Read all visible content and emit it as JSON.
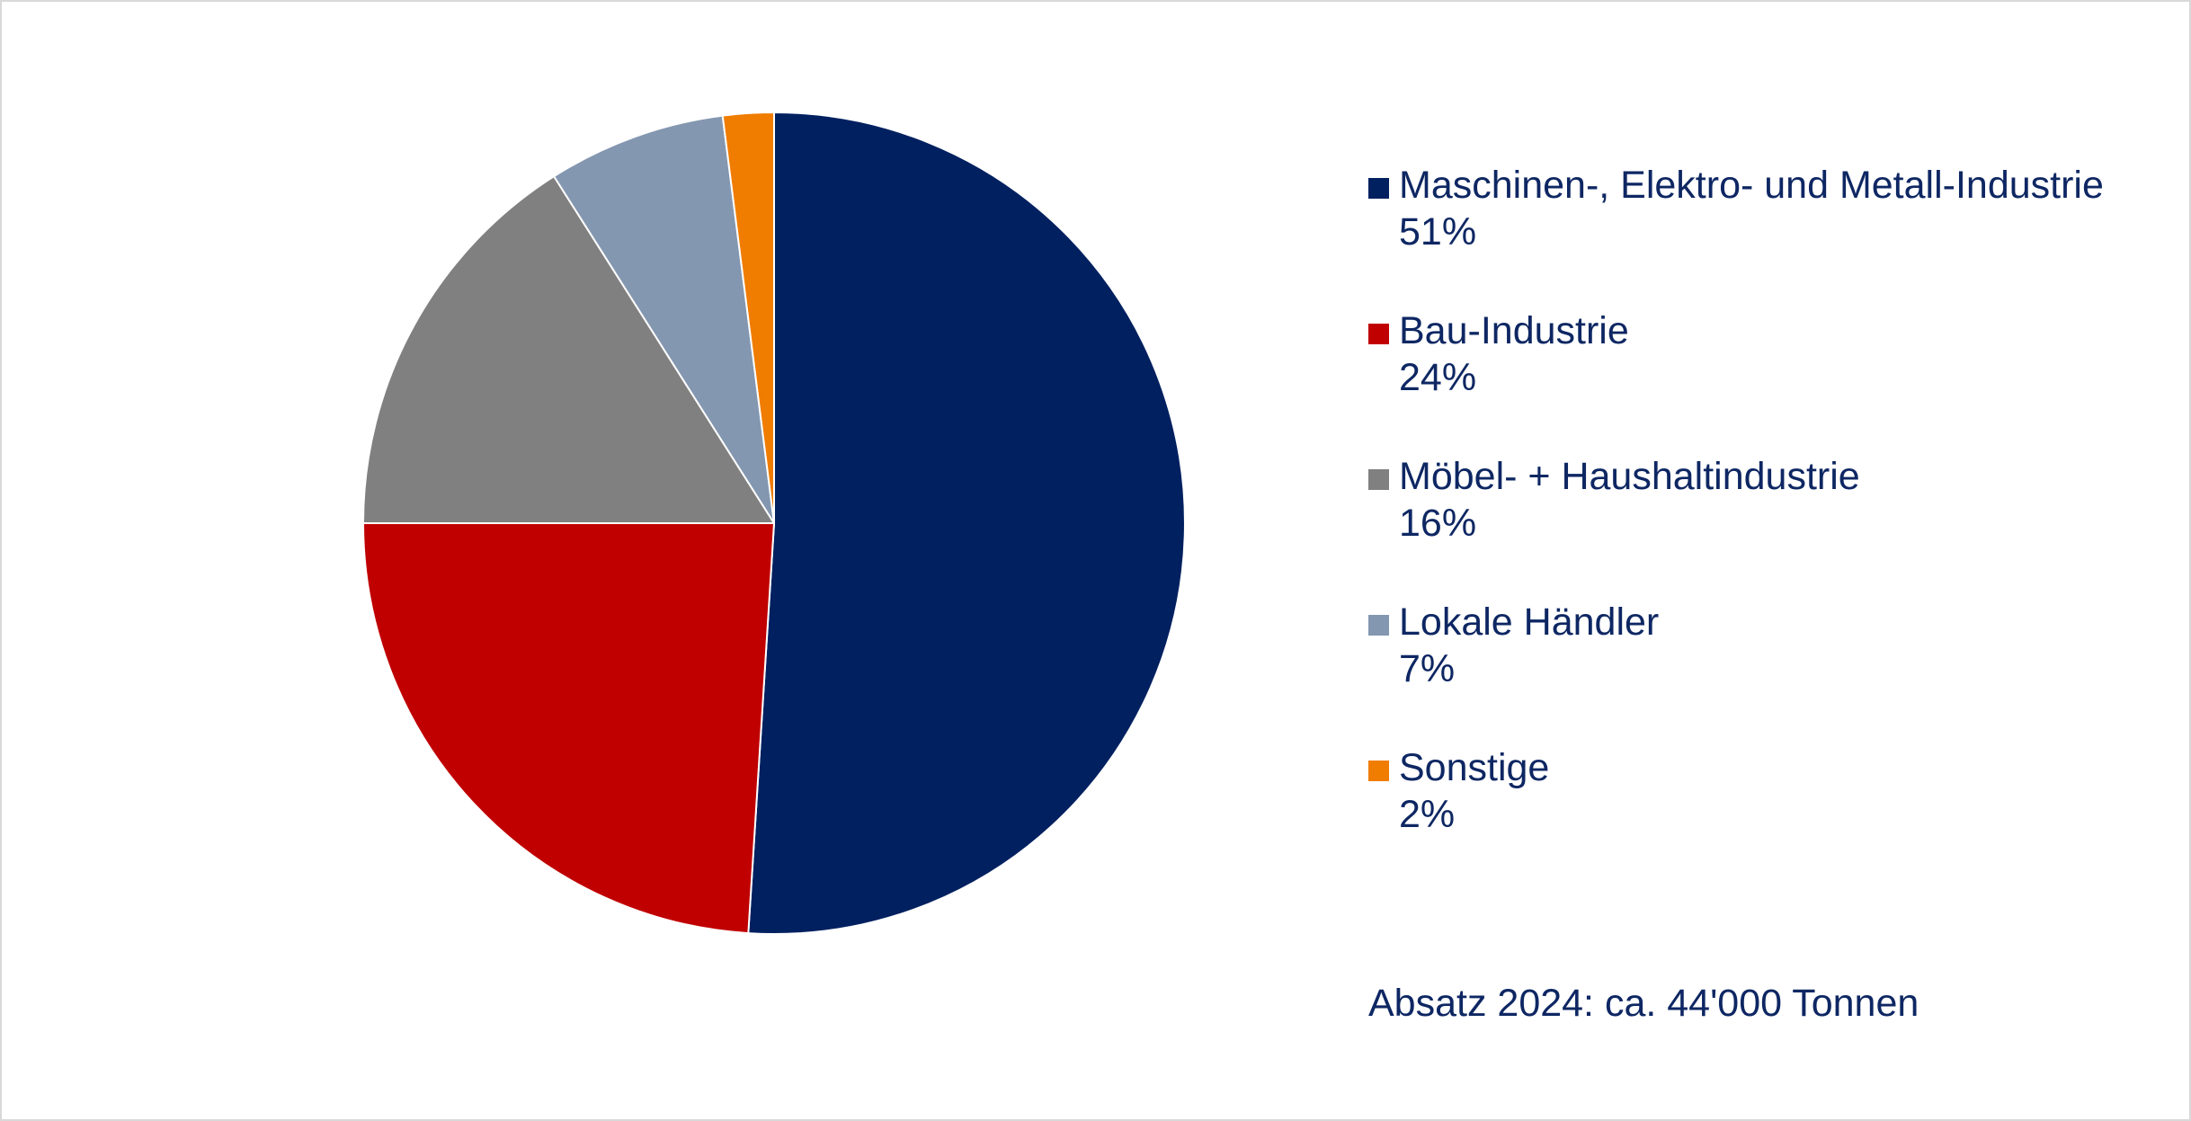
{
  "chart_data": {
    "type": "pie",
    "slices": [
      {
        "label": "Maschinen-, Elektro- und Metall-Industrie",
        "value": 51,
        "value_label": "51%",
        "color": "#002060"
      },
      {
        "label": "Bau-Industrie",
        "value": 24,
        "value_label": "24%",
        "color": "#c00000"
      },
      {
        "label": "Möbel- + Haushaltindustrie",
        "value": 16,
        "value_label": "16%",
        "color": "#808080"
      },
      {
        "label": "Lokale Händler",
        "value": 7,
        "value_label": "7%",
        "color": "#8497b0"
      },
      {
        "label": "Sonstige",
        "value": 2,
        "value_label": "2%",
        "color": "#f07c00"
      }
    ],
    "legend_position": "right",
    "start_angle_deg": 0,
    "direction": "clockwise",
    "text_color": "#0e2763"
  },
  "footnote": "Absatz 2024: ca. 44'000 Tonnen"
}
